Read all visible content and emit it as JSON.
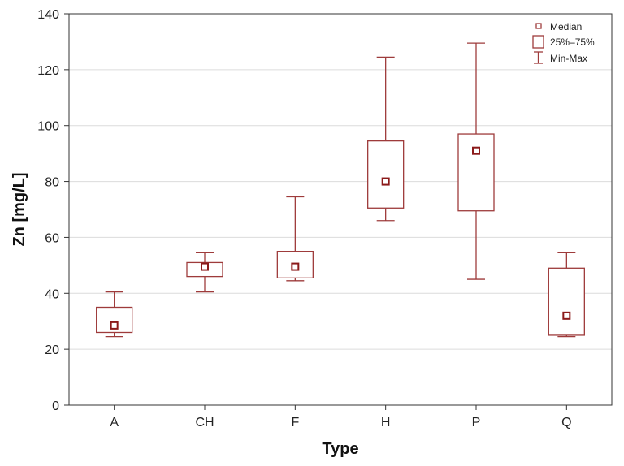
{
  "chart_data": {
    "type": "boxplot",
    "xlabel": "Type",
    "ylabel": "Zn [mg/L]",
    "ylim": [
      0,
      140
    ],
    "yticks": [
      0,
      20,
      40,
      60,
      80,
      100,
      120,
      140
    ],
    "grid": true,
    "legend_position": "top-right",
    "legend": {
      "median": "Median",
      "box": "25%–75%",
      "whisker": "Min-Max"
    },
    "categories": [
      "A",
      "CH",
      "F",
      "H",
      "P",
      "Q"
    ],
    "boxes": [
      {
        "category": "A",
        "min": 24.5,
        "q1": 26.0,
        "median": 28.5,
        "q3": 35.0,
        "max": 40.5
      },
      {
        "category": "CH",
        "min": 40.5,
        "q1": 46.0,
        "median": 49.5,
        "q3": 51.0,
        "max": 54.5
      },
      {
        "category": "F",
        "min": 44.5,
        "q1": 45.5,
        "median": 49.5,
        "q3": 55.0,
        "max": 74.5
      },
      {
        "category": "H",
        "min": 66.0,
        "q1": 70.5,
        "median": 80.0,
        "q3": 94.5,
        "max": 124.5
      },
      {
        "category": "P",
        "min": 45.0,
        "q1": 69.5,
        "median": 91.0,
        "q3": 97.0,
        "max": 129.5
      },
      {
        "category": "Q",
        "min": 24.5,
        "q1": 25.0,
        "median": 32.0,
        "q3": 49.0,
        "max": 54.5
      }
    ],
    "colors": {
      "box": "#9e3b3b",
      "median_fill": "#8b1a1a",
      "grid": "#dcdcdc",
      "axis": "#333333"
    }
  }
}
